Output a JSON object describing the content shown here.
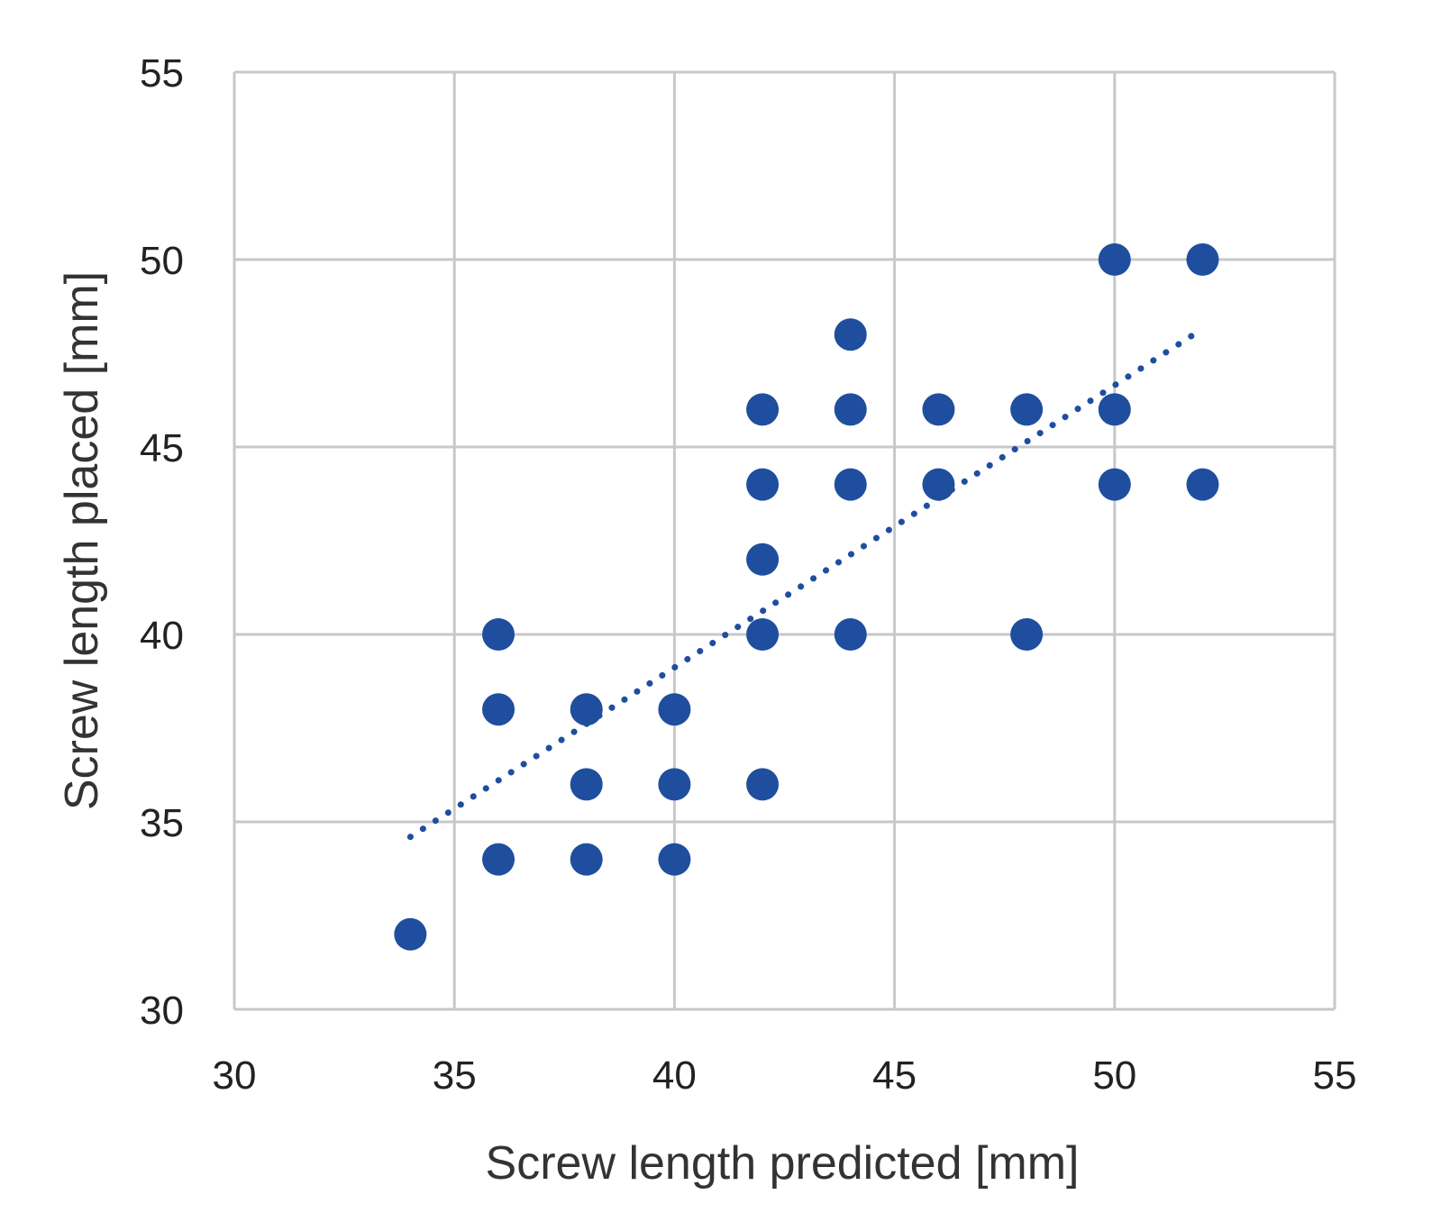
{
  "chart_data": {
    "type": "scatter",
    "title": "",
    "xlabel": "Screw length predicted [mm]",
    "ylabel": "Screw length placed [mm]",
    "xlim": [
      30,
      55
    ],
    "ylim": [
      30,
      55
    ],
    "xticks": [
      "30",
      "35",
      "40",
      "45",
      "50",
      "55"
    ],
    "yticks": [
      "30",
      "35",
      "40",
      "45",
      "50",
      "55"
    ],
    "grid": true,
    "legend": "none",
    "colors": {
      "points": "#1f4e9e",
      "trendline": "#1f4e9e",
      "grid": "#c8c8c8",
      "axis_text": "#222222"
    },
    "series": [
      {
        "points": [
          {
            "x": 34,
            "y": 32
          },
          {
            "x": 36,
            "y": 34
          },
          {
            "x": 36,
            "y": 38
          },
          {
            "x": 36,
            "y": 40
          },
          {
            "x": 38,
            "y": 34
          },
          {
            "x": 38,
            "y": 36
          },
          {
            "x": 38,
            "y": 38
          },
          {
            "x": 40,
            "y": 34
          },
          {
            "x": 40,
            "y": 36
          },
          {
            "x": 40,
            "y": 38
          },
          {
            "x": 42,
            "y": 36
          },
          {
            "x": 42,
            "y": 40
          },
          {
            "x": 42,
            "y": 42
          },
          {
            "x": 42,
            "y": 44
          },
          {
            "x": 42,
            "y": 46
          },
          {
            "x": 44,
            "y": 40
          },
          {
            "x": 44,
            "y": 44
          },
          {
            "x": 44,
            "y": 46
          },
          {
            "x": 44,
            "y": 48
          },
          {
            "x": 46,
            "y": 44
          },
          {
            "x": 46,
            "y": 46
          },
          {
            "x": 48,
            "y": 40
          },
          {
            "x": 48,
            "y": 46
          },
          {
            "x": 50,
            "y": 44
          },
          {
            "x": 50,
            "y": 46
          },
          {
            "x": 50,
            "y": 50
          },
          {
            "x": 52,
            "y": 44
          },
          {
            "x": 52,
            "y": 50
          }
        ]
      }
    ],
    "trendline": {
      "style": "dotted",
      "from": {
        "x": 34,
        "y": 34.6
      },
      "to": {
        "x": 51.8,
        "y": 48.0
      }
    }
  }
}
